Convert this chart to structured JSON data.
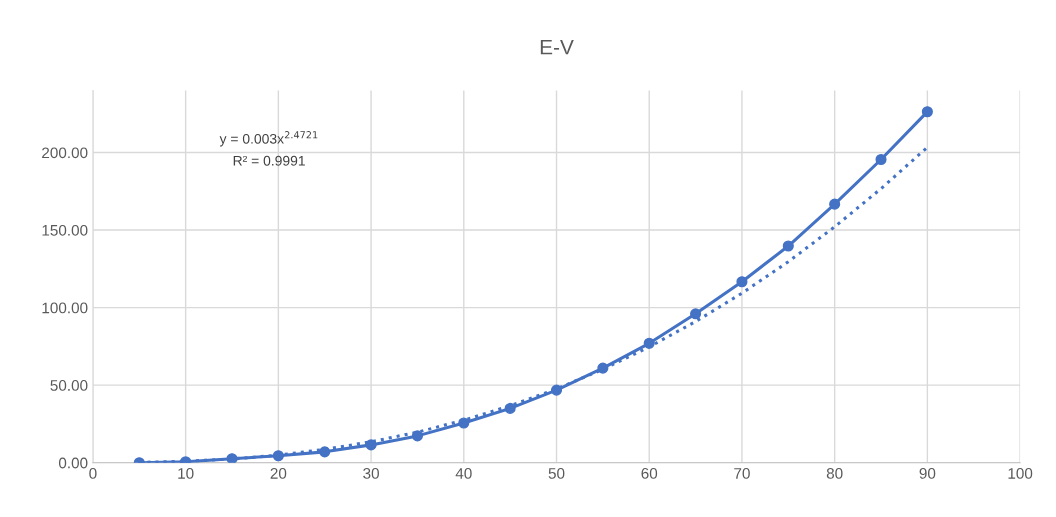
{
  "chart_data": {
    "type": "line",
    "title": "E-V",
    "x": [
      5,
      10,
      15,
      20,
      25,
      30,
      35,
      40,
      45,
      50,
      55,
      60,
      65,
      70,
      75,
      80,
      85,
      90
    ],
    "series": [
      {
        "color": "#4472c4",
        "marker": "circle",
        "line_style": "solid",
        "values": [
          0.0,
          0.6,
          2.6,
          4.5,
          7.0,
          11.5,
          17.3,
          25.6,
          35.0,
          46.8,
          61.0,
          77.0,
          96.0,
          116.7,
          139.7,
          166.7,
          195.5,
          226.3
        ]
      },
      {
        "type": "line",
        "color": "#4472c4",
        "marker": "none",
        "line_style": "dotted",
        "x": [
          5,
          10,
          15,
          20,
          25,
          30,
          35,
          40,
          45,
          50,
          55,
          60,
          65,
          70,
          75,
          80,
          85,
          90
        ],
        "values": [
          0.2,
          0.9,
          2.4,
          4.9,
          8.6,
          13.5,
          19.7,
          27.4,
          36.7,
          47.6,
          60.2,
          74.7,
          91.0,
          109.3,
          129.6,
          152.1,
          176.7,
          203.4
        ]
      }
    ],
    "annotations": [
      "y = 0.003x$^{2.4721}$",
      "R² = 0.9991"
    ],
    "xlim": [
      0,
      100
    ],
    "xticks": [
      0,
      10,
      20,
      30,
      40,
      50,
      60,
      70,
      80,
      90,
      100
    ],
    "ylim": [
      0,
      240
    ],
    "yticks": [
      {
        "value": 0,
        "label": "0.00"
      },
      {
        "value": 50,
        "label": "50.00"
      },
      {
        "value": 100,
        "label": "100.00"
      },
      {
        "value": 150,
        "label": "150.00"
      },
      {
        "value": 200,
        "label": "200.00"
      }
    ],
    "grid": true,
    "legend": false
  }
}
